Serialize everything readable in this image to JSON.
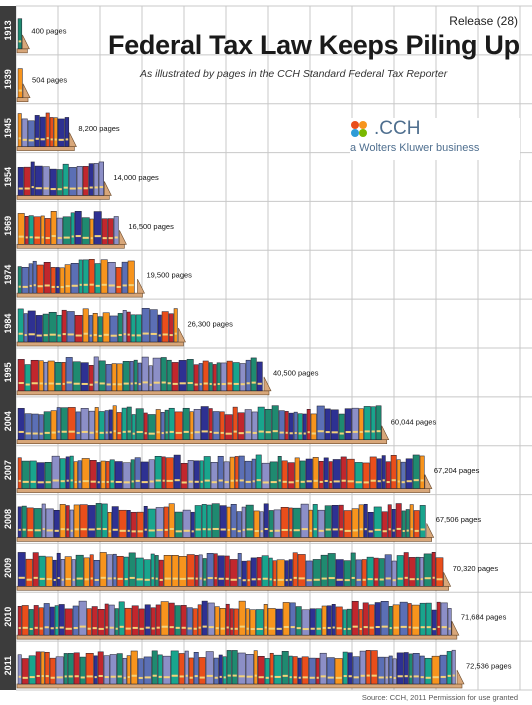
{
  "header": {
    "release": "Release (28)",
    "title": "Federal Tax Law Keeps Piling Up",
    "subtitle": "As illustrated by pages in the CCH Standard Federal Tax Reporter"
  },
  "logo": {
    "name": ".CCH",
    "tagline": "a Wolters Kluwer business"
  },
  "source": "Source: CCH, 2011 Permission for use granted",
  "colors": {
    "grid": "#c8c8c8",
    "year_band": "#3c3c3c",
    "shelf": "#d8a77a",
    "book_palette": [
      "#1f8a70",
      "#2e3192",
      "#c1272d",
      "#5b6fb5",
      "#f7941d",
      "#19a58d",
      "#8c8fc7",
      "#e94e1b"
    ]
  },
  "chart_data": {
    "type": "bar",
    "title": "Federal Tax Law Keeps Piling Up",
    "subtitle": "As illustrated by pages in the CCH Standard Federal Tax Reporter",
    "categories": [
      "1913",
      "1939",
      "1945",
      "1954",
      "1969",
      "1974",
      "1984",
      "1995",
      "2004",
      "2007",
      "2008",
      "2009",
      "2010",
      "2011"
    ],
    "values": [
      400,
      504,
      8200,
      14000,
      16500,
      19500,
      26300,
      40500,
      60044,
      67204,
      67506,
      70320,
      71684,
      72536
    ],
    "data_labels": [
      "400 pages",
      "504 pages",
      "8,200 pages",
      "14,000 pages",
      "16,500 pages",
      "19,500 pages",
      "26,300 pages",
      "40,500 pages",
      "60,044 pages",
      "67,204 pages",
      "67,506 pages",
      "70,320 pages",
      "71,684 pages",
      "72,536 pages"
    ],
    "orientation": "horizontal",
    "xlim": [
      0,
      90000
    ],
    "grid": true
  }
}
